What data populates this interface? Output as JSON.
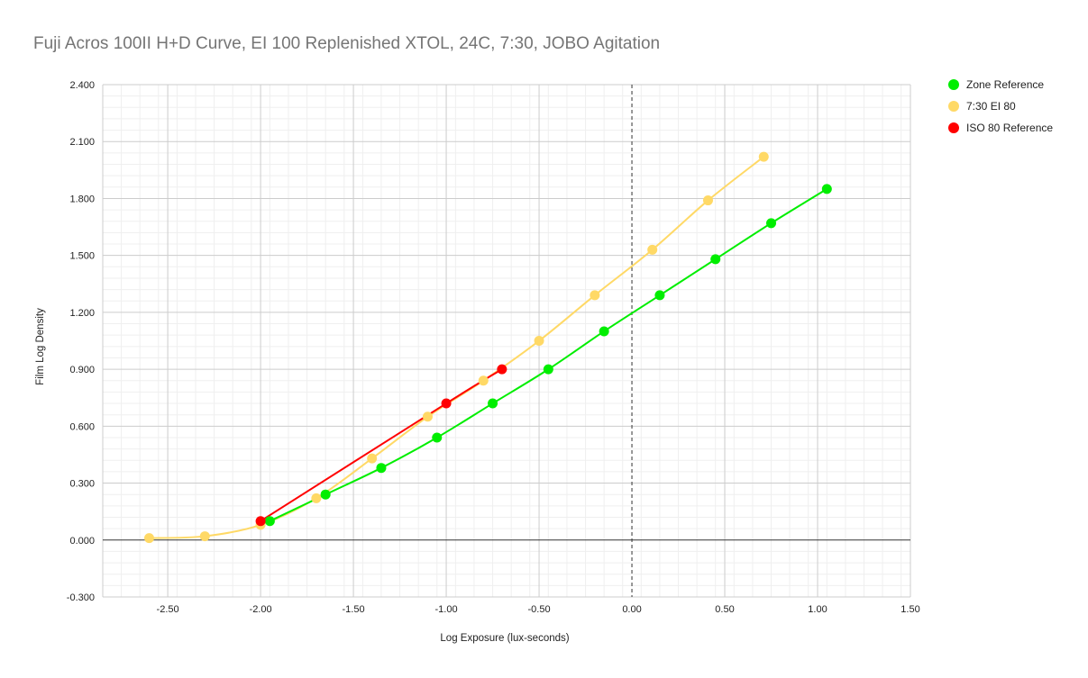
{
  "chart_data": {
    "type": "scatter",
    "title": "Fuji Acros 100II H+D Curve, EI 100 Replenished XTOL, 24C, 7:30, JOBO Agitation",
    "xlabel": "Log Exposure (lux-seconds)",
    "ylabel": "Film Log Density",
    "xlim": [
      -2.85,
      1.5
    ],
    "ylim": [
      -0.3,
      2.4
    ],
    "x_ticks": [
      -2.5,
      -2.0,
      -1.5,
      -1.0,
      -0.5,
      0.0,
      0.5,
      1.0,
      1.5
    ],
    "x_tick_labels": [
      "-2.50",
      "-2.00",
      "-1.50",
      "-1.00",
      "-0.50",
      "0.00",
      "0.50",
      "1.00",
      "1.50"
    ],
    "y_ticks": [
      -0.3,
      0.0,
      0.3,
      0.6,
      0.9,
      1.2,
      1.5,
      1.8,
      2.1,
      2.4
    ],
    "y_tick_labels": [
      "-0.300",
      "0.000",
      "0.300",
      "0.600",
      "0.900",
      "1.200",
      "1.500",
      "1.800",
      "2.100",
      "2.400"
    ],
    "grid": true,
    "legend_position": "right",
    "series": [
      {
        "name": "Zone Reference",
        "color": "#00ee00",
        "x": [
          -1.95,
          -1.65,
          -1.35,
          -1.05,
          -0.75,
          -0.45,
          -0.15,
          0.15,
          0.45,
          0.75,
          1.05
        ],
        "y": [
          0.1,
          0.24,
          0.38,
          0.54,
          0.72,
          0.9,
          1.1,
          1.29,
          1.48,
          1.67,
          1.85
        ]
      },
      {
        "name": "7:30 EI 80",
        "color": "#ffd966",
        "x": [
          -2.6,
          -2.3,
          -2.0,
          -1.7,
          -1.4,
          -1.1,
          -0.8,
          -0.5,
          -0.2,
          0.11,
          0.41,
          0.71
        ],
        "y": [
          0.01,
          0.02,
          0.08,
          0.22,
          0.43,
          0.65,
          0.84,
          1.05,
          1.29,
          1.53,
          1.79,
          2.02
        ]
      },
      {
        "name": "ISO 80 Reference",
        "color": "#ff0000",
        "x": [
          -2.0,
          -1.0,
          -0.7
        ],
        "y": [
          0.1,
          0.72,
          0.9
        ]
      }
    ]
  }
}
